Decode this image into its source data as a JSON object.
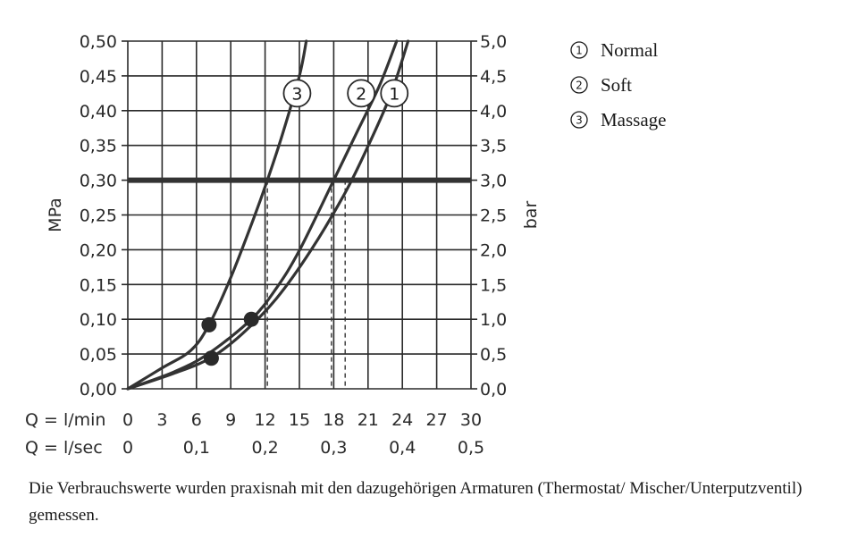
{
  "chart_data": {
    "type": "line",
    "y_left": {
      "label": "MPa",
      "range": [
        0,
        0.5
      ],
      "ticks": [
        "0,00",
        "0,05",
        "0,10",
        "0,15",
        "0,20",
        "0,25",
        "0,30",
        "0,35",
        "0,40",
        "0,45",
        "0,50"
      ]
    },
    "y_right": {
      "label": "bar",
      "range": [
        0,
        5
      ],
      "ticks": [
        "0,0",
        "0,5",
        "1,0",
        "1,5",
        "2,0",
        "2,5",
        "3,0",
        "3,5",
        "4,0",
        "4,5",
        "5,0"
      ]
    },
    "x_min": {
      "label": "Q = l/min",
      "range": [
        0,
        30
      ],
      "ticks": [
        "0",
        "3",
        "6",
        "9",
        "12",
        "15",
        "18",
        "21",
        "24",
        "27",
        "30"
      ]
    },
    "x_sec": {
      "label": "Q = l/sec",
      "ticks": [
        "0",
        "0,1",
        "0,2",
        "0,3",
        "0,4",
        "0,5"
      ],
      "tick_values_lmin": [
        0,
        6,
        12,
        18,
        24,
        30
      ]
    },
    "grid": true,
    "legend_position": "top-right",
    "series": [
      {
        "name": "Normal",
        "id": "1",
        "x": [
          0,
          4,
          7.2,
          10,
          13,
          16,
          19,
          21,
          23,
          24.5
        ],
        "y": [
          0,
          0.022,
          0.044,
          0.079,
          0.13,
          0.199,
          0.282,
          0.349,
          0.424,
          0.5
        ]
      },
      {
        "name": "Soft",
        "id": "2",
        "x": [
          0,
          4,
          7,
          10.8,
          13,
          15,
          18,
          20,
          22,
          23.5
        ],
        "y": [
          0,
          0.024,
          0.05,
          0.1,
          0.145,
          0.199,
          0.3,
          0.368,
          0.436,
          0.5
        ]
      },
      {
        "name": "Massage",
        "id": "3",
        "x": [
          0,
          3,
          5.5,
          7.1,
          9,
          11,
          12.2,
          13.5,
          15,
          15.6
        ],
        "y": [
          0,
          0.03,
          0.055,
          0.092,
          0.16,
          0.245,
          0.3,
          0.365,
          0.45,
          0.5
        ]
      }
    ],
    "reference_line": {
      "y": 0.3
    },
    "markers": [
      {
        "x": 7.1,
        "y": 0.092
      },
      {
        "x": 7.3,
        "y": 0.044
      },
      {
        "x": 10.8,
        "y": 0.1
      }
    ],
    "dashed_drop_lines_x": [
      12.2,
      17.8,
      19.0
    ],
    "curve_labels": [
      {
        "id": "3",
        "x": 14.8,
        "y": 0.425
      },
      {
        "id": "2",
        "x": 20.4,
        "y": 0.425
      },
      {
        "id": "1",
        "x": 23.3,
        "y": 0.425
      }
    ]
  },
  "legend": [
    {
      "num": "1",
      "label": "Normal"
    },
    {
      "num": "2",
      "label": "Soft"
    },
    {
      "num": "3",
      "label": "Massage"
    }
  ],
  "colors": {
    "curve": "#333333",
    "grid": "#2a2a2a",
    "reference": "#333333"
  },
  "footnote": "Die Verbrauchswerte wurden praxisnah mit den dazugehörigen Armaturen (Thermostat/ Mischer/Unterputzventil) gemessen."
}
